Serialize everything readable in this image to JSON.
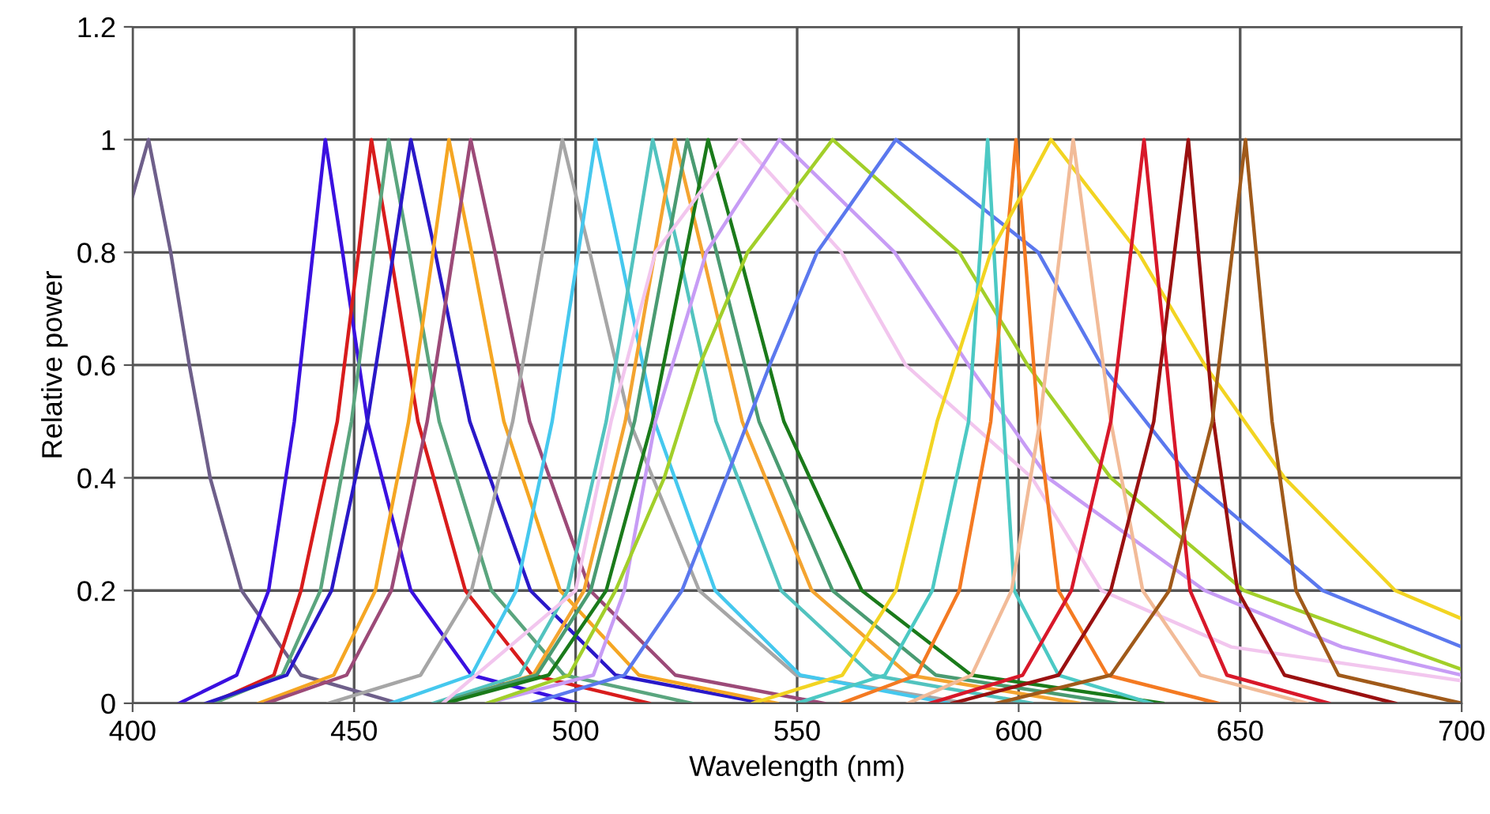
{
  "chart_data": {
    "type": "line",
    "xlabel": "Wavelength (nm)",
    "ylabel": "Relative power",
    "xlim": [
      400,
      700
    ],
    "ylim": [
      0,
      1.2
    ],
    "xticks": [
      400,
      450,
      500,
      550,
      600,
      650,
      700
    ],
    "yticks": [
      0,
      0.2,
      0.4,
      0.6,
      0.8,
      1,
      1.2
    ],
    "grid": true,
    "legend": false,
    "marker": "none",
    "line_style": "solid",
    "series": [
      {
        "color": "#6e5f8a",
        "x": [
          400,
          403.6,
          408.6,
          412.8,
          417.5,
          424.6,
          438,
          460
        ],
        "values": [
          0.9,
          1,
          0.8,
          0.6,
          0.4,
          0.2,
          0.05,
          0
        ]
      },
      {
        "color": "#3a10e0",
        "x": [
          410.5,
          423.5,
          430.7,
          436.5,
          440.7,
          443.5,
          447.4,
          453,
          462.8,
          476.5,
          500.5
        ],
        "values": [
          0,
          0.05,
          0.2,
          0.5,
          0.8,
          1,
          0.8,
          0.5,
          0.2,
          0.05,
          0
        ]
      },
      {
        "color": "#d81c1c",
        "x": [
          417.6,
          431.9,
          438,
          446.2,
          451.0,
          453.9,
          458.2,
          464.4,
          475.1,
          490.2,
          516.6
        ],
        "values": [
          0,
          0.05,
          0.2,
          0.5,
          0.8,
          1,
          0.8,
          0.5,
          0.2,
          0.05,
          0
        ]
      },
      {
        "color": "#5aa57e",
        "x": [
          418.2,
          433.8,
          442.4,
          449.4,
          454.4,
          457.8,
          462.5,
          469.2,
          481,
          497.4,
          526.2
        ],
        "values": [
          0,
          0.05,
          0.2,
          0.5,
          0.8,
          1,
          0.8,
          0.5,
          0.2,
          0.05,
          0
        ]
      },
      {
        "color": "#2a18c8",
        "x": [
          416.6,
          434.8,
          444.9,
          453,
          458.9,
          462.8,
          468.3,
          476.1,
          489.8,
          509,
          542.6
        ],
        "values": [
          0,
          0.05,
          0.2,
          0.5,
          0.8,
          1,
          0.8,
          0.5,
          0.2,
          0.05,
          0
        ]
      },
      {
        "color": "#f5a623",
        "x": [
          428.5,
          445.4,
          454.8,
          462.3,
          467.8,
          471.4,
          476.5,
          483.8,
          496.5,
          514.3,
          545.5
        ],
        "values": [
          0,
          0.05,
          0.2,
          0.5,
          0.8,
          1,
          0.8,
          0.5,
          0.2,
          0.05,
          0
        ]
      },
      {
        "color": "#9c4a78",
        "x": [
          430.1,
          448.3,
          458.4,
          466.5,
          472.4,
          476.3,
          481.8,
          489.6,
          503.3,
          522.5,
          556.1
        ],
        "values": [
          0,
          0.05,
          0.2,
          0.5,
          0.8,
          1,
          0.8,
          0.5,
          0.2,
          0.05,
          0
        ]
      },
      {
        "color": "#a6a6a6",
        "x": [
          444.2,
          465,
          476.5,
          485.8,
          492.5,
          497,
          503.2,
          512.2,
          527.9,
          549.8,
          588.2
        ],
        "values": [
          0,
          0.05,
          0.2,
          0.5,
          0.8,
          1,
          0.8,
          0.5,
          0.2,
          0.05,
          0
        ]
      },
      {
        "color": "#45c8ee",
        "x": [
          458.3,
          476.5,
          486.6,
          494.7,
          500.6,
          504.5,
          510,
          517.8,
          531.5,
          550.7,
          584.3
        ],
        "values": [
          0,
          0.05,
          0.2,
          0.5,
          0.8,
          1,
          0.8,
          0.5,
          0.2,
          0.05,
          0
        ]
      },
      {
        "color": "#52c3bf",
        "x": [
          467.9,
          487.4,
          498.2,
          506.9,
          513.2,
          517.4,
          523.3,
          531.7,
          546.4,
          566.9,
          602.9
        ],
        "values": [
          0,
          0.05,
          0.2,
          0.5,
          0.8,
          1,
          0.8,
          0.5,
          0.2,
          0.05,
          0
        ]
      },
      {
        "color": "#f4a430",
        "x": [
          469.6,
          490.4,
          501.9,
          511.2,
          517.9,
          522.4,
          528.6,
          537.6,
          553.3,
          575.2,
          613.6
        ],
        "values": [
          0,
          0.05,
          0.2,
          0.5,
          0.8,
          1,
          0.8,
          0.5,
          0.2,
          0.05,
          0
        ]
      },
      {
        "color": "#4a9b72",
        "x": [
          469.1,
          491.2,
          503.4,
          513.3,
          520.4,
          525.2,
          531.8,
          541.4,
          558,
          581.3,
          622.1
        ],
        "values": [
          0,
          0.05,
          0.2,
          0.5,
          0.8,
          1,
          0.8,
          0.5,
          0.2,
          0.05,
          0
        ]
      },
      {
        "color": "#1a7a1a",
        "x": [
          470.5,
          493.9,
          506.9,
          517.3,
          524.9,
          529.9,
          536.9,
          547,
          564.6,
          589.3,
          632.5
        ],
        "values": [
          0,
          0.05,
          0.2,
          0.5,
          0.8,
          1,
          0.8,
          0.5,
          0.2,
          0.05,
          0
        ]
      },
      {
        "color": "#f2c6ee",
        "x": [
          470,
          500,
          508,
          518,
          537,
          560,
          574.5,
          603,
          618.7,
          648,
          700
        ],
        "values": [
          0,
          0.2,
          0.5,
          0.8,
          1,
          0.8,
          0.6,
          0.4,
          0.2,
          0.1,
          0.04
        ]
      },
      {
        "color": "#c79cf5",
        "x": [
          480,
          504,
          511,
          518,
          529.5,
          546,
          572,
          588.7,
          606.6,
          642,
          673,
          700
        ],
        "values": [
          0,
          0.05,
          0.2,
          0.5,
          0.8,
          1,
          0.8,
          0.6,
          0.4,
          0.2,
          0.1,
          0.05
        ]
      },
      {
        "color": "#a2cf2a",
        "x": [
          480,
          498.5,
          509,
          520,
          528,
          538.8,
          558,
          586.6,
          602,
          620.8,
          650.8,
          700
        ],
        "values": [
          0,
          0.05,
          0.2,
          0.4,
          0.6,
          0.8,
          1,
          0.8,
          0.6,
          0.4,
          0.2,
          0.06
        ]
      },
      {
        "color": "#5b78ee",
        "x": [
          490,
          511,
          524,
          534,
          543.8,
          554.5,
          572.3,
          604.4,
          618.7,
          638.7,
          668.6,
          700
        ],
        "values": [
          0,
          0.05,
          0.2,
          0.4,
          0.6,
          0.8,
          1,
          0.8,
          0.6,
          0.4,
          0.2,
          0.1
        ]
      },
      {
        "color": "#4cc9c4",
        "x": [
          550,
          569.8,
          580.5,
          588.7,
          593,
          596.6,
          599,
          609,
          630
        ],
        "values": [
          0,
          0.05,
          0.2,
          0.5,
          1,
          0.5,
          0.2,
          0.05,
          0
        ]
      },
      {
        "color": "#f47a22",
        "x": [
          560,
          577,
          586.6,
          593.7,
          599.4,
          604.4,
          609,
          620,
          645
        ],
        "values": [
          0,
          0.05,
          0.2,
          0.5,
          1,
          0.5,
          0.2,
          0.05,
          0
        ]
      },
      {
        "color": "#f2d422",
        "x": [
          540,
          560.2,
          572.3,
          581.6,
          593.7,
          607.3,
          627,
          642,
          660,
          685,
          700
        ],
        "values": [
          0,
          0.05,
          0.2,
          0.5,
          0.8,
          1,
          0.8,
          0.6,
          0.4,
          0.2,
          0.15
        ]
      },
      {
        "color": "#f2bb98",
        "x": [
          575,
          589.4,
          598.4,
          604.8,
          612.3,
          620.8,
          628,
          641,
          665
        ],
        "values": [
          0,
          0.05,
          0.2,
          0.5,
          1,
          0.5,
          0.2,
          0.05,
          0
        ]
      },
      {
        "color": "#d8182a",
        "x": [
          580,
          600.9,
          611.9,
          620.8,
          628.3,
          634.7,
          638.7,
          647,
          670
        ],
        "values": [
          0,
          0.05,
          0.2,
          0.5,
          1,
          0.5,
          0.2,
          0.05,
          0
        ]
      },
      {
        "color": "#9a1010",
        "x": [
          585,
          609,
          620.8,
          630.5,
          638.3,
          644,
          649.4,
          660,
          685
        ],
        "values": [
          0,
          0.05,
          0.2,
          0.5,
          1,
          0.5,
          0.2,
          0.05,
          0
        ]
      },
      {
        "color": "#a05a1a",
        "x": [
          595,
          620.8,
          634,
          643.7,
          651.2,
          657.2,
          662.6,
          672.2,
          700
        ],
        "values": [
          0,
          0.05,
          0.2,
          0.5,
          1,
          0.5,
          0.2,
          0.05,
          0
        ]
      }
    ]
  }
}
